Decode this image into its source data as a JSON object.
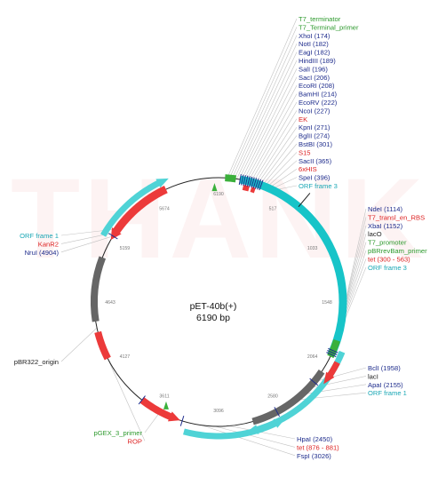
{
  "plasmid": {
    "name": "pET-40b(+)",
    "size": "6190 bp"
  },
  "watermark": "THANK",
  "colors": {
    "green_label": "#2e9a2e",
    "red_label": "#dd2222",
    "navy_label": "#1e2c8c",
    "teal_label": "#1aa7b5",
    "black_label": "#222222",
    "ring_teal": "#17c4c8",
    "ring_light_teal": "#4fd3d6",
    "ring_red": "#ec3a3a",
    "ring_gray": "#666666",
    "ring_green": "#3bb03b",
    "leader": "#c2c2c2"
  },
  "ticks": [
    "6190",
    "517",
    "1033",
    "1548",
    "2064",
    "2580",
    "3096",
    "3611",
    "4127",
    "4643",
    "5159",
    "5674"
  ],
  "labels_top": [
    {
      "text": "T7_terminator",
      "color": "green"
    },
    {
      "text": "T7_Terminal_primer",
      "color": "green"
    },
    {
      "text": "XhoI (174)",
      "color": "navy"
    },
    {
      "text": "NotI (182)",
      "color": "navy"
    },
    {
      "text": "EagI (182)",
      "color": "navy"
    },
    {
      "text": "HindIII (189)",
      "color": "navy"
    },
    {
      "text": "SalI (196)",
      "color": "navy"
    },
    {
      "text": "SacI (206)",
      "color": "navy"
    },
    {
      "text": "EcoRI (208)",
      "color": "navy"
    },
    {
      "text": "BamHI (214)",
      "color": "navy"
    },
    {
      "text": "EcoRV (222)",
      "color": "navy"
    },
    {
      "text": "NcoI (227)",
      "color": "navy"
    },
    {
      "text": "EK",
      "color": "red"
    },
    {
      "text": "KpnI (271)",
      "color": "navy"
    },
    {
      "text": "BglII (274)",
      "color": "navy"
    },
    {
      "text": "BstBI (301)",
      "color": "navy"
    },
    {
      "text": "S15",
      "color": "red"
    },
    {
      "text": "SacII (365)",
      "color": "navy"
    },
    {
      "text": "6xHIS",
      "color": "red"
    },
    {
      "text": "SpeI (396)",
      "color": "navy"
    },
    {
      "text": "ORF frame 3",
      "color": "teal"
    }
  ],
  "labels_right": [
    {
      "text": "NdeI (1114)",
      "color": "navy"
    },
    {
      "text": "T7_transl_en_RBS",
      "color": "red"
    },
    {
      "text": "XbaI (1152)",
      "color": "navy"
    },
    {
      "text": "lacO",
      "color": "black"
    },
    {
      "text": "T7_promoter",
      "color": "green"
    },
    {
      "text": "pBRrevBam_primer",
      "color": "green"
    },
    {
      "text": "tet (300 - 563)",
      "color": "red"
    },
    {
      "text": "ORF frame 3",
      "color": "teal"
    }
  ],
  "labels_right_lower": [
    {
      "text": "BclI (1958)",
      "color": "navy"
    },
    {
      "text": "lacI",
      "color": "black"
    },
    {
      "text": "ApaI (2155)",
      "color": "navy"
    },
    {
      "text": "ORF frame 1",
      "color": "teal"
    }
  ],
  "labels_bottom": [
    {
      "text": "HpaI (2450)",
      "color": "navy"
    },
    {
      "text": "tet (876 - 881)",
      "color": "red"
    },
    {
      "text": "FspI (3026)",
      "color": "navy"
    }
  ],
  "labels_left": [
    {
      "text": "ORF frame 1",
      "color": "teal"
    },
    {
      "text": "KanR2",
      "color": "red"
    },
    {
      "text": "NruI (4904)",
      "color": "navy"
    }
  ],
  "labels_left_mid": [
    {
      "text": "pBR322_origin",
      "color": "black"
    }
  ],
  "labels_left_bottom": [
    {
      "text": "pGEX_3_primer",
      "color": "green"
    },
    {
      "text": "ROP",
      "color": "red"
    }
  ]
}
